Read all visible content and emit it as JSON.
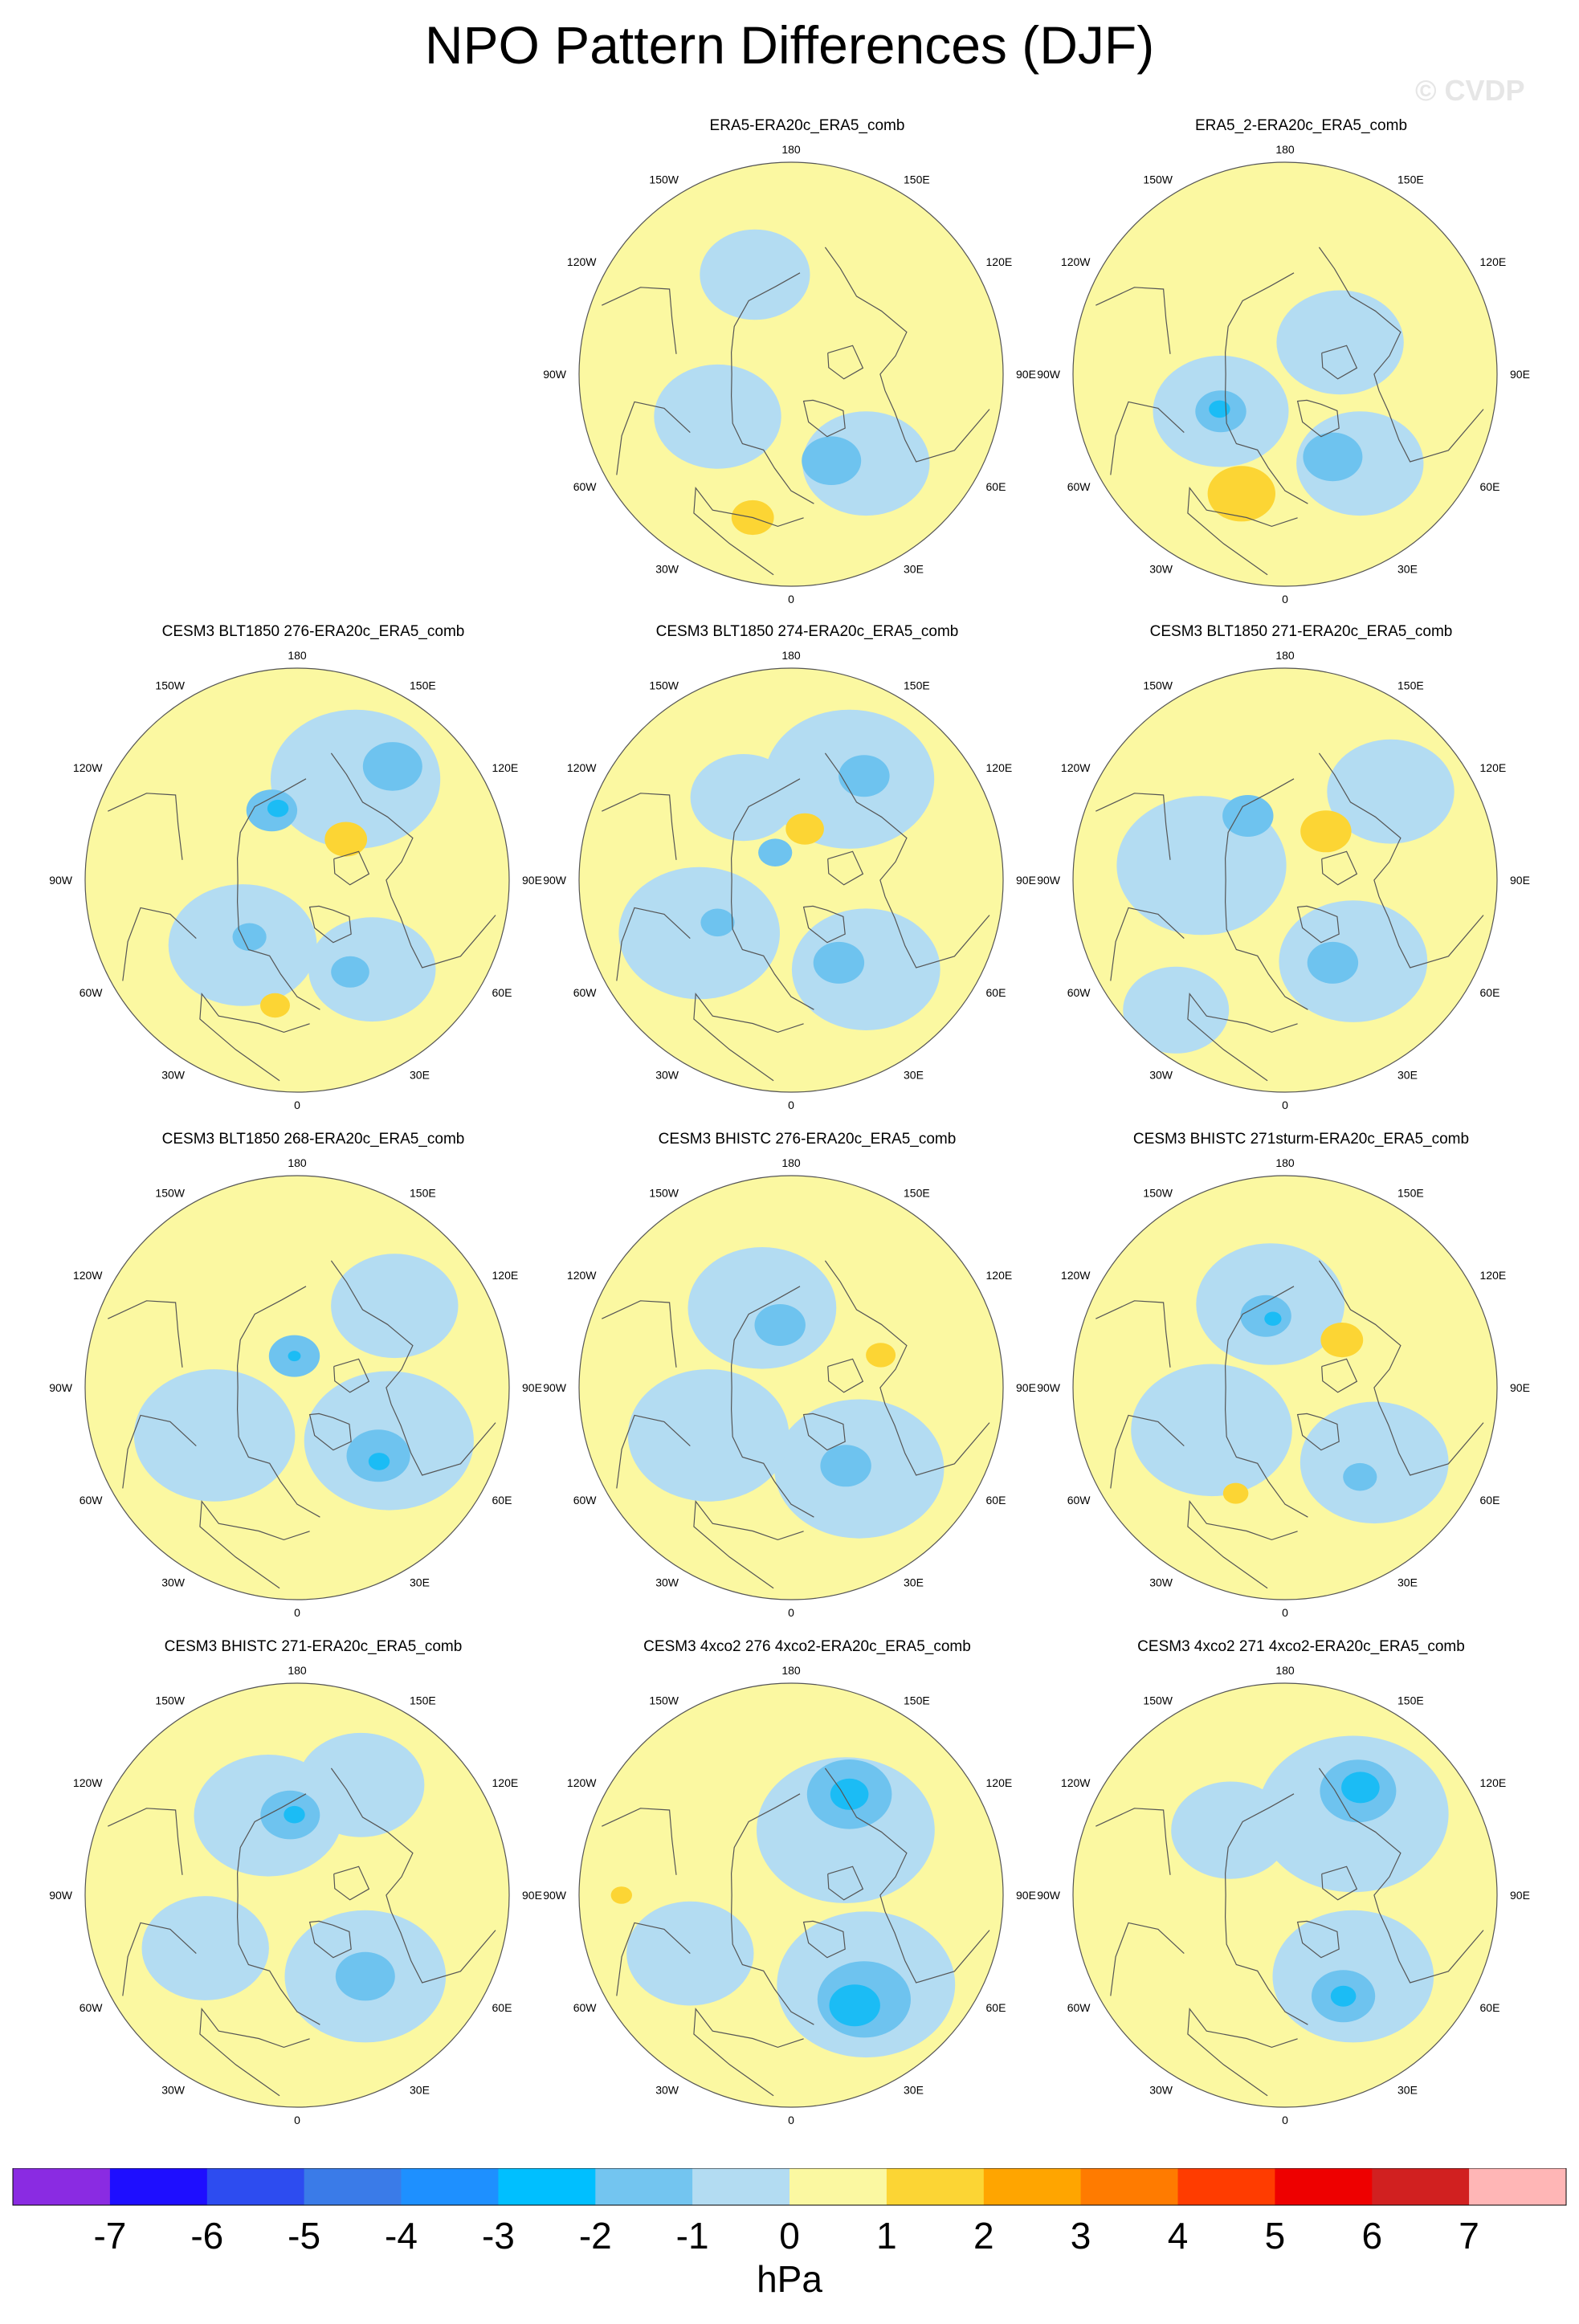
{
  "title": "NPO Pattern Differences (DJF)",
  "watermark": "© CVDP",
  "longitude_labels": [
    "180",
    "150E",
    "120E",
    "90E",
    "60E",
    "30E",
    "0",
    "30W",
    "60W",
    "90W",
    "120W",
    "150W"
  ],
  "colors": {
    "neg1": "#b3dcf2",
    "neg2": "#6ec3ef",
    "neg3": "#1bbcf5",
    "pos1": "#fbf8a1",
    "pos2": "#fcd534",
    "coast": "#555555"
  },
  "panels": [
    {
      "title": "ERA5-ERA20c_ERA5_comb",
      "row": 0,
      "col": 1,
      "blobs": [
        {
          "level": "neg1",
          "lon": -40,
          "r": 0.55,
          "size": 0.3
        },
        {
          "level": "neg1",
          "lon": 60,
          "r": 0.4,
          "size": 0.3
        },
        {
          "level": "neg1",
          "lon": 160,
          "r": 0.5,
          "size": 0.26
        },
        {
          "level": "neg2",
          "lon": -25,
          "r": 0.45,
          "size": 0.14
        },
        {
          "level": "pos2",
          "lon": 15,
          "r": 0.7,
          "size": 0.1
        }
      ]
    },
    {
      "title": "ERA5_2-ERA20c_ERA5_comb",
      "row": 0,
      "col": 2,
      "blobs": [
        {
          "level": "neg1",
          "lon": -40,
          "r": 0.55,
          "size": 0.3
        },
        {
          "level": "neg1",
          "lon": 60,
          "r": 0.35,
          "size": 0.32
        },
        {
          "level": "neg1",
          "lon": -120,
          "r": 0.3,
          "size": 0.3
        },
        {
          "level": "neg2",
          "lon": -30,
          "r": 0.45,
          "size": 0.14
        },
        {
          "level": "neg2",
          "lon": 60,
          "r": 0.35,
          "size": 0.12
        },
        {
          "level": "neg3",
          "lon": 62,
          "r": 0.35,
          "size": 0.05
        },
        {
          "level": "pos2",
          "lon": 20,
          "r": 0.6,
          "size": 0.16
        }
      ]
    },
    {
      "title": "CESM3 BLT1850 276-ERA20c_ERA5_comb",
      "row": 1,
      "col": 0,
      "blobs": [
        {
          "level": "neg1",
          "lon": -150,
          "r": 0.55,
          "size": 0.4
        },
        {
          "level": "neg1",
          "lon": 40,
          "r": 0.4,
          "size": 0.35
        },
        {
          "level": "neg1",
          "lon": -40,
          "r": 0.55,
          "size": 0.3
        },
        {
          "level": "neg2",
          "lon": -140,
          "r": 0.7,
          "size": 0.14
        },
        {
          "level": "neg2",
          "lon": 160,
          "r": 0.35,
          "size": 0.12
        },
        {
          "level": "neg3",
          "lon": 165,
          "r": 0.35,
          "size": 0.05
        },
        {
          "level": "neg2",
          "lon": -30,
          "r": 0.5,
          "size": 0.09
        },
        {
          "level": "neg2",
          "lon": 40,
          "r": 0.35,
          "size": 0.08
        },
        {
          "level": "pos2",
          "lon": -130,
          "r": 0.3,
          "size": 0.1
        },
        {
          "level": "pos2",
          "lon": 10,
          "r": 0.6,
          "size": 0.07
        }
      ]
    },
    {
      "title": "CESM3 BLT1850 274-ERA20c_ERA5_comb",
      "row": 1,
      "col": 1,
      "blobs": [
        {
          "level": "neg1",
          "lon": -150,
          "r": 0.55,
          "size": 0.4
        },
        {
          "level": "neg1",
          "lon": -40,
          "r": 0.55,
          "size": 0.35
        },
        {
          "level": "neg1",
          "lon": 60,
          "r": 0.5,
          "size": 0.38
        },
        {
          "level": "neg1",
          "lon": 150,
          "r": 0.45,
          "size": 0.25
        },
        {
          "level": "neg2",
          "lon": -145,
          "r": 0.6,
          "size": 0.12
        },
        {
          "level": "neg2",
          "lon": -30,
          "r": 0.45,
          "size": 0.12
        },
        {
          "level": "neg2",
          "lon": 60,
          "r": 0.4,
          "size": 0.08
        },
        {
          "level": "neg2",
          "lon": 150,
          "r": 0.15,
          "size": 0.08
        },
        {
          "level": "pos2",
          "lon": -165,
          "r": 0.25,
          "size": 0.09
        }
      ]
    },
    {
      "title": "CESM3 BLT1850 271-ERA20c_ERA5_comb",
      "row": 1,
      "col": 2,
      "blobs": [
        {
          "level": "neg1",
          "lon": -40,
          "r": 0.5,
          "size": 0.35
        },
        {
          "level": "neg1",
          "lon": 100,
          "r": 0.4,
          "size": 0.4
        },
        {
          "level": "neg1",
          "lon": -130,
          "r": 0.65,
          "size": 0.3
        },
        {
          "level": "neg1",
          "lon": 40,
          "r": 0.8,
          "size": 0.25
        },
        {
          "level": "neg2",
          "lon": -30,
          "r": 0.45,
          "size": 0.12
        },
        {
          "level": "neg2",
          "lon": 150,
          "r": 0.35,
          "size": 0.12
        },
        {
          "level": "pos2",
          "lon": -140,
          "r": 0.3,
          "size": 0.12
        }
      ]
    },
    {
      "title": "CESM3 BLT1850 268-ERA20c_ERA5_comb",
      "row": 2,
      "col": 0,
      "blobs": [
        {
          "level": "neg1",
          "lon": -60,
          "r": 0.5,
          "size": 0.4
        },
        {
          "level": "neg1",
          "lon": 60,
          "r": 0.45,
          "size": 0.38
        },
        {
          "level": "neg1",
          "lon": -130,
          "r": 0.6,
          "size": 0.3
        },
        {
          "level": "neg2",
          "lon": -50,
          "r": 0.5,
          "size": 0.15
        },
        {
          "level": "neg3",
          "lon": -48,
          "r": 0.52,
          "size": 0.05
        },
        {
          "level": "neg2",
          "lon": 175,
          "r": 0.15,
          "size": 0.12
        },
        {
          "level": "neg3",
          "lon": 175,
          "r": 0.15,
          "size": 0.03
        }
      ]
    },
    {
      "title": "CESM3 BHISTC 276-ERA20c_ERA5_comb",
      "row": 2,
      "col": 1,
      "blobs": [
        {
          "level": "neg1",
          "lon": -40,
          "r": 0.5,
          "size": 0.4
        },
        {
          "level": "neg1",
          "lon": 60,
          "r": 0.45,
          "size": 0.38
        },
        {
          "level": "neg1",
          "lon": 160,
          "r": 0.4,
          "size": 0.35
        },
        {
          "level": "neg2",
          "lon": -35,
          "r": 0.45,
          "size": 0.12
        },
        {
          "level": "neg2",
          "lon": 170,
          "r": 0.3,
          "size": 0.12
        },
        {
          "level": "pos2",
          "lon": -110,
          "r": 0.45,
          "size": 0.07
        }
      ]
    },
    {
      "title": "CESM3 BHISTC 271sturm-ERA20c_ERA5_comb",
      "row": 2,
      "col": 2,
      "blobs": [
        {
          "level": "neg1",
          "lon": -50,
          "r": 0.55,
          "size": 0.35
        },
        {
          "level": "neg1",
          "lon": 60,
          "r": 0.4,
          "size": 0.38
        },
        {
          "level": "neg1",
          "lon": 170,
          "r": 0.4,
          "size": 0.35
        },
        {
          "level": "neg2",
          "lon": -40,
          "r": 0.55,
          "size": 0.08
        },
        {
          "level": "neg2",
          "lon": 165,
          "r": 0.35,
          "size": 0.12
        },
        {
          "level": "neg3",
          "lon": 170,
          "r": 0.33,
          "size": 0.04
        },
        {
          "level": "pos2",
          "lon": -130,
          "r": 0.35,
          "size": 0.1
        },
        {
          "level": "pos2",
          "lon": 25,
          "r": 0.55,
          "size": 0.06
        }
      ]
    },
    {
      "title": "CESM3 BHISTC 271-ERA20c_ERA5_comb",
      "row": 3,
      "col": 0,
      "blobs": [
        {
          "level": "neg1",
          "lon": -40,
          "r": 0.5,
          "size": 0.38
        },
        {
          "level": "neg1",
          "lon": -150,
          "r": 0.6,
          "size": 0.3
        },
        {
          "level": "neg1",
          "lon": 160,
          "r": 0.4,
          "size": 0.35
        },
        {
          "level": "neg1",
          "lon": 60,
          "r": 0.5,
          "size": 0.3
        },
        {
          "level": "neg2",
          "lon": -40,
          "r": 0.5,
          "size": 0.14
        },
        {
          "level": "neg2",
          "lon": 175,
          "r": 0.38,
          "size": 0.14
        },
        {
          "level": "neg3",
          "lon": 178,
          "r": 0.38,
          "size": 0.05
        }
      ]
    },
    {
      "title": "CESM3 4xco2 276 4xco2-ERA20c_ERA5_comb",
      "row": 3,
      "col": 1,
      "blobs": [
        {
          "level": "neg1",
          "lon": -140,
          "r": 0.4,
          "size": 0.42
        },
        {
          "level": "neg1",
          "lon": -40,
          "r": 0.55,
          "size": 0.42
        },
        {
          "level": "neg1",
          "lon": 60,
          "r": 0.55,
          "size": 0.3
        },
        {
          "level": "neg2",
          "lon": -150,
          "r": 0.55,
          "size": 0.2
        },
        {
          "level": "neg3",
          "lon": -150,
          "r": 0.55,
          "size": 0.09
        },
        {
          "level": "neg2",
          "lon": -35,
          "r": 0.6,
          "size": 0.22
        },
        {
          "level": "neg3",
          "lon": -30,
          "r": 0.6,
          "size": 0.12
        },
        {
          "level": "pos2",
          "lon": 90,
          "r": 0.8,
          "size": 0.05
        }
      ]
    },
    {
      "title": "CESM3 4xco2 271 4xco2-ERA20c_ERA5_comb",
      "row": 3,
      "col": 2,
      "blobs": [
        {
          "level": "neg1",
          "lon": -140,
          "r": 0.5,
          "size": 0.45
        },
        {
          "level": "neg1",
          "lon": -40,
          "r": 0.5,
          "size": 0.38
        },
        {
          "level": "neg1",
          "lon": 140,
          "r": 0.4,
          "size": 0.28
        },
        {
          "level": "neg2",
          "lon": -145,
          "r": 0.6,
          "size": 0.18
        },
        {
          "level": "neg3",
          "lon": -145,
          "r": 0.62,
          "size": 0.09
        },
        {
          "level": "neg2",
          "lon": -30,
          "r": 0.55,
          "size": 0.15
        },
        {
          "level": "neg3",
          "lon": -30,
          "r": 0.55,
          "size": 0.06
        }
      ]
    }
  ],
  "colorbar": {
    "labels": [
      "-7",
      "-6",
      "-5",
      "-4",
      "-3",
      "-2",
      "-1",
      "0",
      "1",
      "2",
      "3",
      "4",
      "5",
      "6",
      "7"
    ],
    "colors": [
      "#8a2be2",
      "#1e0eff",
      "#2d4cf0",
      "#3a7be8",
      "#1e90ff",
      "#00bfff",
      "#73c5f0",
      "#b3dcf2",
      "#fbf8a1",
      "#fcd534",
      "#ffa500",
      "#ff7b00",
      "#ff3c00",
      "#ee0000",
      "#d12020",
      "#ffb6b6"
    ],
    "unit": "hPa"
  }
}
